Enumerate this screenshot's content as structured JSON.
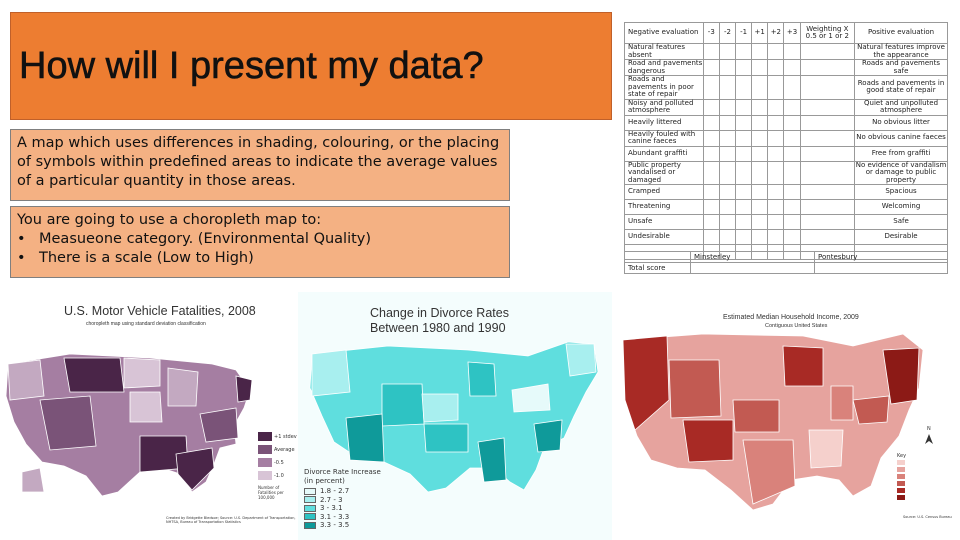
{
  "slide": {
    "title": "How will I present my data?",
    "definition": "A map which uses differences in shading, colouring, or the placing of symbols within predefined areas to indicate the average values of a particular quantity in those areas.",
    "task_intro": "You are going to use a choropleth map to:",
    "bullets": [
      "Measueone category. (Environmental Quality)",
      "There is a scale (Low to High)"
    ],
    "bullet_glyph": "•"
  },
  "eval_table": {
    "header_negative": "Negative evaluation",
    "scores": [
      "-3",
      "-2",
      "-1",
      "+1",
      "+2",
      "+3"
    ],
    "header_weighting": "Weighting X 0.5 or 1 or 2",
    "header_positive": "Positive evaluation",
    "rows": [
      {
        "neg": "Natural features absent",
        "pos": "Natural features improve the appearance"
      },
      {
        "neg": "Road and pavements dangerous",
        "pos": "Roads and pavements safe"
      },
      {
        "neg": "Roads and pavements in poor state of repair",
        "pos": "Roads and pavements in good state of repair"
      },
      {
        "neg": "Noisy and polluted atmosphere",
        "pos": "Quiet and unpolluted atmosphere"
      },
      {
        "neg": "Heavily littered",
        "pos": "No obvious litter"
      },
      {
        "neg": "Heavily fouled with canine faeces",
        "pos": "No obvious canine faeces"
      },
      {
        "neg": "Abundant graffiti",
        "pos": "Free from graffiti"
      },
      {
        "neg": "Public property vandalised or damaged",
        "pos": "No evidence of vandalism or damage to public property"
      },
      {
        "neg": "Cramped",
        "pos": "Spacious"
      },
      {
        "neg": "Threatening",
        "pos": "Welcoming"
      },
      {
        "neg": "Unsafe",
        "pos": "Safe"
      },
      {
        "neg": "Undesirable",
        "pos": "Desirable"
      }
    ],
    "site_1": "Minsterley",
    "site_2": "Pontesbury",
    "total_label": "Total score"
  },
  "map_1": {
    "title": "U.S. Motor Vehicle Fatalities, 2008",
    "subtitle": "choropleth map using standard deviation classification",
    "legend": [
      "+1 stdev",
      "Average",
      "-0.5",
      "-1.0",
      "Number of Fatalities per 100,000"
    ],
    "credit": "Created by Bridgette Bledsoe; Source: U.S. Department of Transportation, NHTSA, Bureau of Transportation Statistics"
  },
  "map_2": {
    "title_line1": "Change in Divorce Rates",
    "title_line2": "Between 1980 and 1990",
    "legend_title": "Divorce Rate Increase",
    "legend_unit": "(in percent)",
    "legend_items": [
      "1.8 - 2.7",
      "2.7 - 3",
      "3 - 3.1",
      "3.1 - 3.3",
      "3.3 - 3.5"
    ],
    "legend_colors": [
      "#e6fafa",
      "#a8efef",
      "#5fdede",
      "#2ec3c3",
      "#0f9a9a"
    ]
  },
  "map_3": {
    "title": "Estimated Median Household Income, 2009",
    "subtitle": "Contiguous United States",
    "key_label": "Key",
    "north_label": "N",
    "source": "Source: U.S. Census Bureau"
  },
  "colors": {
    "title_bg": "#ed7d31",
    "textbox_bg": "#f4b183",
    "purple_dark": "#4a2548",
    "purple_light": "#d8c4d6",
    "teal_dark": "#0f9a9a",
    "red_dark": "#a82a25"
  }
}
